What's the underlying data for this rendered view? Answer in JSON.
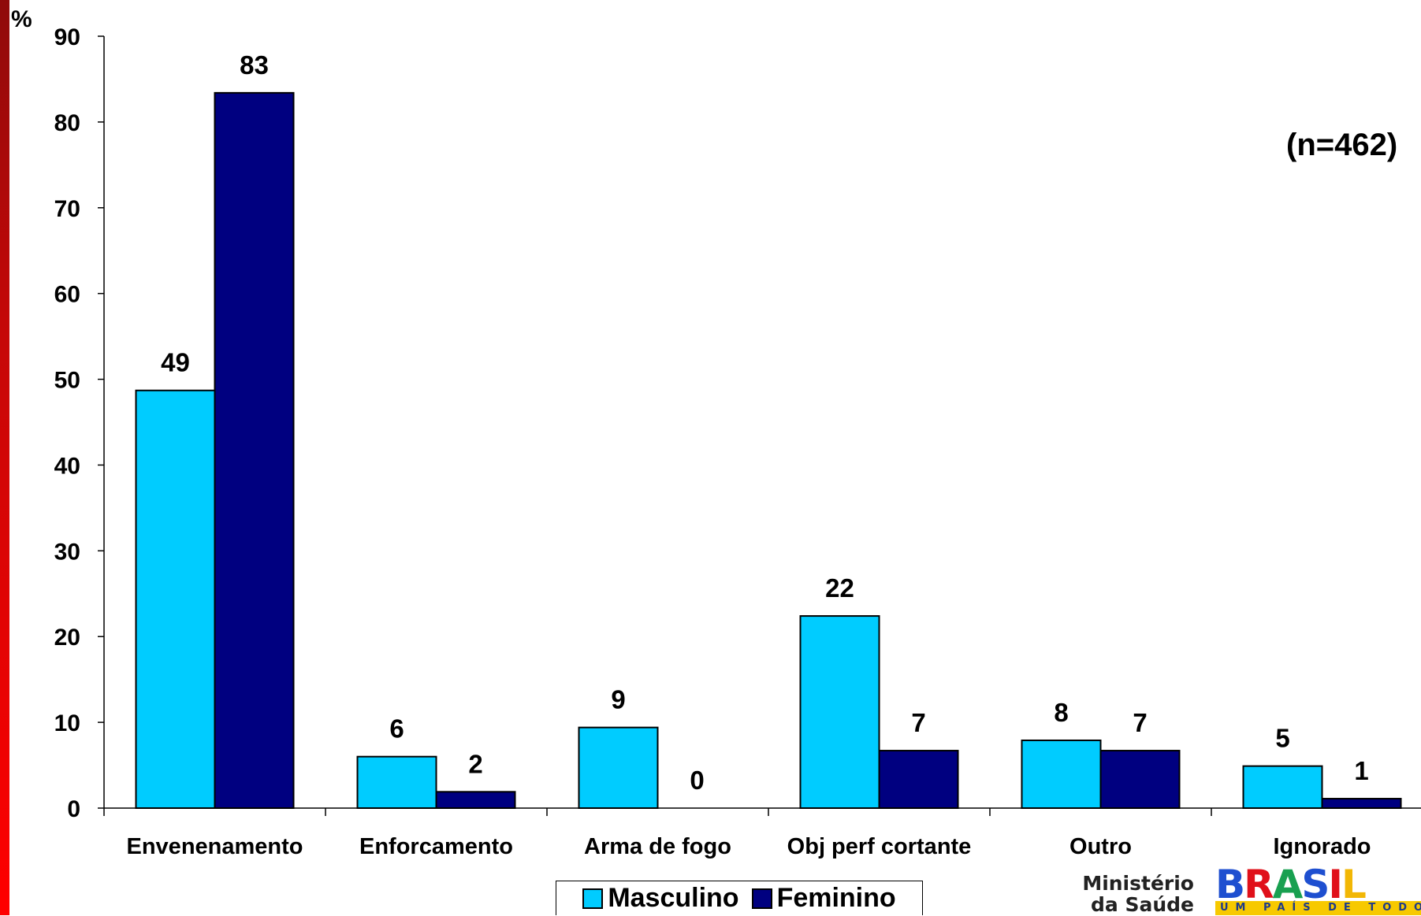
{
  "chart_data": {
    "type": "bar",
    "title": "",
    "xlabel": "",
    "ylabel": "%",
    "ylim": [
      0,
      90
    ],
    "yticks": [
      0,
      10,
      20,
      30,
      40,
      50,
      60,
      70,
      80,
      90
    ],
    "grid": false,
    "legend_position": "bottom",
    "categories": [
      "Envenenamento",
      "Enforcamento",
      "Arma de fogo",
      "Obj perf cortante",
      "Outro",
      "Ignorado"
    ],
    "series": [
      {
        "name": "Masculino",
        "color": "#00ccff",
        "values": [
          48.7,
          6.0,
          9.4,
          22.4,
          7.9,
          4.9
        ],
        "labels": [
          "49",
          "6",
          "9",
          "22",
          "8",
          "5"
        ]
      },
      {
        "name": "Feminino",
        "color": "#000080",
        "values": [
          83.4,
          1.9,
          0.0,
          6.7,
          6.7,
          1.1
        ],
        "labels": [
          "83",
          "2",
          "0",
          "7",
          "7",
          "1"
        ]
      }
    ],
    "annotation": "(n=462)"
  },
  "footer": {
    "ministerio_line1": "Ministério",
    "ministerio_line2": "da Saúde",
    "brasil_word": "BRASIL",
    "brasil_tagline": "UM PAÍS DE TODOS",
    "stripe_color": "#cc0000"
  }
}
